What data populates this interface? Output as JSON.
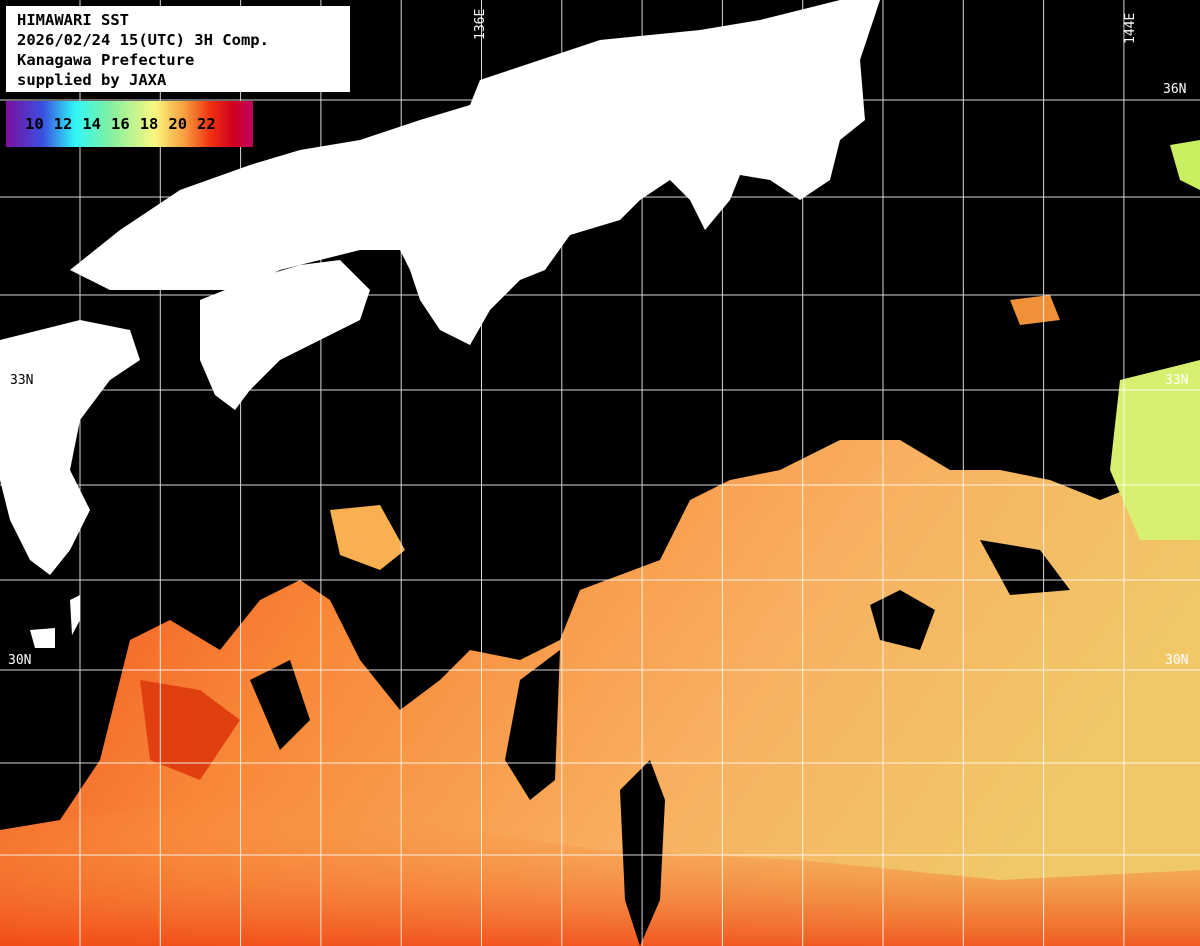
{
  "info": {
    "title": "HIMAWARI SST",
    "datetime": "2026/02/24 15(UTC) 3H Comp.",
    "region": "Kanagawa Prefecture",
    "credit": "supplied by JAXA"
  },
  "color_scale": {
    "ticks": [
      "10",
      "12",
      "14",
      "16",
      "18",
      "20",
      "22"
    ],
    "colors": [
      "#7a0fa0",
      "#3a50e0",
      "#30f8f8",
      "#80f0a0",
      "#f8f880",
      "#f8a040",
      "#f03010",
      "#d00020",
      "#c00060"
    ]
  },
  "grid_labels": {
    "lon_136": "136E",
    "lon_144": "144E",
    "lat_36": "36N",
    "lat_33_left": "33N",
    "lat_33_right": "33N",
    "lat_30_left": "30N",
    "lat_30_right": "30N"
  },
  "colors": {
    "land": "#ffffff",
    "no_data": "#000000",
    "grid": "#ffffff"
  }
}
